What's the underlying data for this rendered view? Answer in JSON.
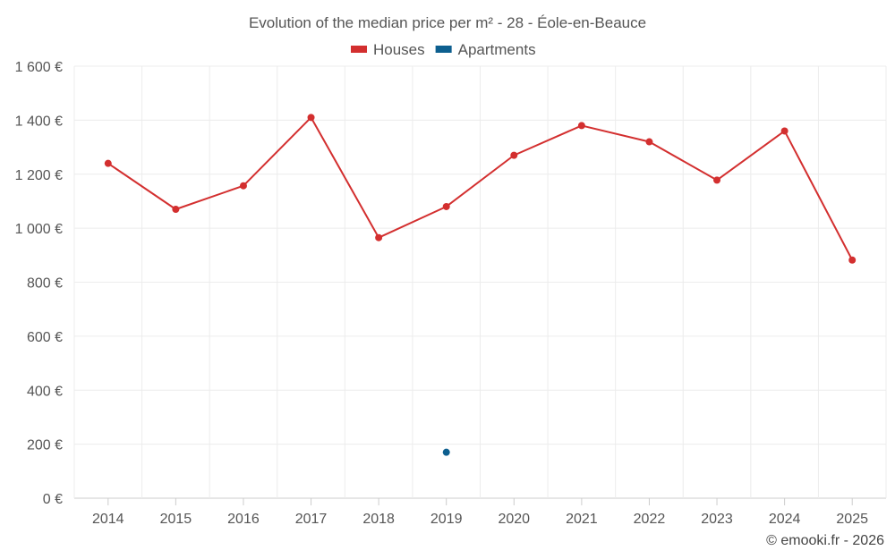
{
  "chart_data": {
    "type": "line",
    "title": "Evolution of the median price per m² - 28 - Éole-en-Beauce",
    "categories": [
      "2014",
      "2015",
      "2016",
      "2017",
      "2018",
      "2019",
      "2020",
      "2021",
      "2022",
      "2023",
      "2024",
      "2025"
    ],
    "series": [
      {
        "name": "Houses",
        "color": "#d32f2f",
        "values": [
          1240,
          1070,
          1157,
          1410,
          965,
          1080,
          1270,
          1380,
          1320,
          1178,
          1360,
          882
        ]
      },
      {
        "name": "Apartments",
        "color": "#0d5f8f",
        "values": [
          null,
          null,
          null,
          null,
          null,
          170,
          null,
          null,
          null,
          null,
          null,
          null
        ]
      }
    ],
    "ylim": [
      0,
      1600
    ],
    "yticks": [
      0,
      200,
      400,
      600,
      800,
      1000,
      1200,
      1400,
      1600
    ],
    "ytick_labels": [
      "0 €",
      "200 €",
      "400 €",
      "600 €",
      "800 €",
      "1 000 €",
      "1 200 €",
      "1 400 €",
      "1 600 €"
    ],
    "xlabel": "",
    "ylabel": "",
    "grid": true,
    "legend_position": "top-center"
  },
  "credit": "© emooki.fr - 2026"
}
